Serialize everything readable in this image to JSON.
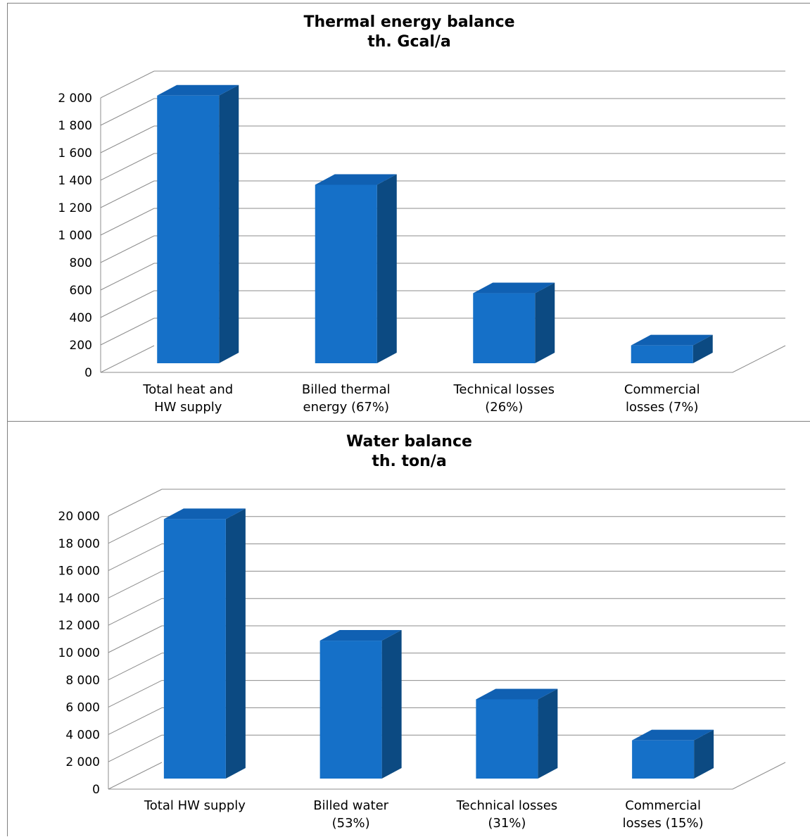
{
  "chart_data": [
    {
      "type": "bar",
      "title": "Thermal energy balance",
      "subtitle": "th. Gcal/a",
      "categories": [
        [
          "Total heat and",
          "HW supply"
        ],
        [
          "Billed thermal",
          "energy (67%)"
        ],
        [
          "Technical losses",
          "(26%)"
        ],
        [
          "Commercial",
          "losses (7%)"
        ]
      ],
      "values": [
        1950,
        1300,
        510,
        130
      ],
      "ylim": [
        0,
        2000
      ],
      "yticks": [
        "0",
        "200",
        "400",
        "600",
        "800",
        "1 000",
        "1 200",
        "1 400",
        "1 600",
        "1 800",
        "2 000"
      ],
      "grid": true,
      "bar_color": "#1570C8",
      "bar_side_color": "#0C4A82",
      "bar_top_color": "#1060B2"
    },
    {
      "type": "bar",
      "title": "Water balance",
      "subtitle": "th. ton/a",
      "categories": [
        [
          "Total HW supply"
        ],
        [
          "Billed water",
          "(53%)"
        ],
        [
          "Technical losses",
          "(31%)"
        ],
        [
          "Commercial",
          "losses (15%)"
        ]
      ],
      "values": [
        19000,
        10100,
        5800,
        2800
      ],
      "ylim": [
        0,
        20000
      ],
      "yticks": [
        "0",
        "2 000",
        "4 000",
        "6 000",
        "8 000",
        "10 000",
        "12 000",
        "14 000",
        "16 000",
        "18 000",
        "20 000"
      ],
      "grid": true,
      "bar_color": "#1570C8",
      "bar_side_color": "#0C4A82",
      "bar_top_color": "#1060B2"
    }
  ]
}
